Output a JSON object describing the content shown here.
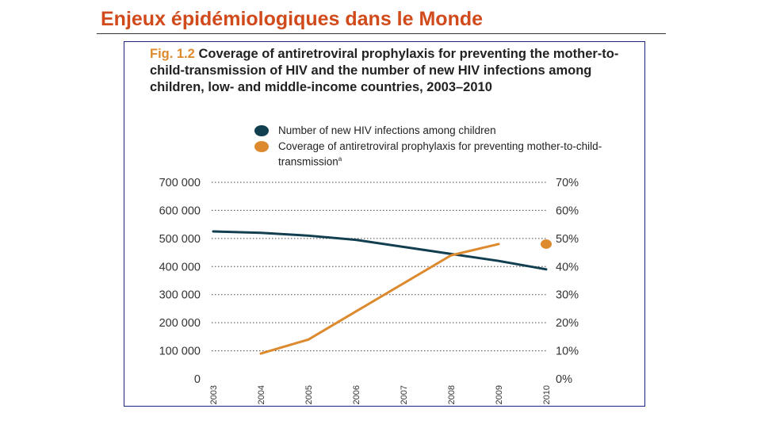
{
  "slide": {
    "title": "Enjeux épidémiologiques dans le Monde"
  },
  "figure": {
    "label": "Fig. 1.2",
    "title": "Coverage of antiretroviral prophylaxis for preventing the mother-to-child-transmission of HIV and the number of new HIV infections among children, low- and middle-income countries, 2003–2010"
  },
  "colors": {
    "slide_title": "#d04a1c",
    "infections_series": "#113f4f",
    "coverage_series": "#dd8a2e",
    "frame_border": "#1a237e"
  },
  "legend": {
    "placement": "top",
    "items": [
      {
        "label": "Number of new HIV infections among children"
      },
      {
        "label": "Coverage of antiretroviral prophylaxis for preventing mother-to-child-transmission",
        "superscript": "a"
      }
    ]
  },
  "chart_data": {
    "type": "line",
    "x": [
      "2003",
      "2004",
      "2005",
      "2006",
      "2007",
      "2008",
      "2009",
      "2010"
    ],
    "grid": "horizontal-dotted",
    "y_left": {
      "range": [
        0,
        700000
      ],
      "tick_values": [
        0,
        100000,
        200000,
        300000,
        400000,
        500000,
        600000,
        700000
      ],
      "tick_labels": [
        "0",
        "100 000",
        "200 000",
        "300 000",
        "400 000",
        "500 000",
        "600 000",
        "700 000"
      ]
    },
    "y_right": {
      "range": [
        0,
        70
      ],
      "tick_values": [
        0,
        10,
        20,
        30,
        40,
        50,
        60,
        70
      ],
      "tick_labels": [
        "0%",
        "10%",
        "20%",
        "30%",
        "40%",
        "50%",
        "60%",
        "70%"
      ]
    },
    "series": [
      {
        "name": "Number of new HIV infections among children",
        "axis": "left",
        "style": "line",
        "values": [
          525000,
          520000,
          510000,
          495000,
          470000,
          445000,
          420000,
          390000
        ]
      },
      {
        "name": "Coverage of antiretroviral prophylaxis for preventing mother-to-child-transmission",
        "axis": "right",
        "style": "line",
        "values": [
          null,
          9,
          14,
          24,
          34,
          44,
          48,
          null
        ]
      },
      {
        "name": "Coverage of antiretroviral prophylaxis for preventing mother-to-child-transmission",
        "axis": "right",
        "style": "point",
        "values": [
          null,
          null,
          null,
          null,
          null,
          null,
          null,
          48
        ]
      }
    ]
  }
}
